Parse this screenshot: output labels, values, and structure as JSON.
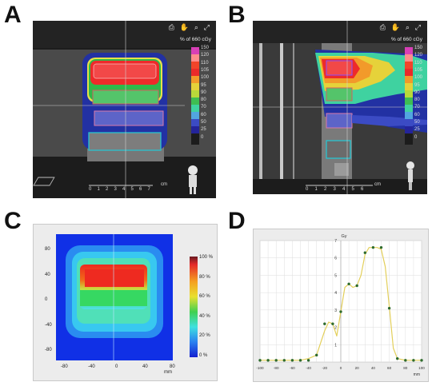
{
  "panels": {
    "a": {
      "letter": "A",
      "pct_label": "% of 660 cGy",
      "colorbar_labels": [
        "150",
        "120",
        "110",
        "105",
        "100",
        "95",
        "90",
        "80",
        "70",
        "60",
        "50",
        "25",
        "0"
      ],
      "ruler_unit": "cm",
      "ruler_ticks": [
        "0",
        "1",
        "2",
        "3",
        "4",
        "5",
        "6",
        "7"
      ]
    },
    "b": {
      "letter": "B",
      "pct_label": "% of 660 cGy",
      "colorbar_labels": [
        "150",
        "120",
        "110",
        "105",
        "100",
        "95",
        "90",
        "80",
        "70",
        "60",
        "50",
        "25",
        "0"
      ],
      "ruler_unit": "cm",
      "ruler_ticks": [
        "0",
        "1",
        "2",
        "3",
        "4",
        "5",
        "6"
      ]
    },
    "c": {
      "letter": "C",
      "colorbar_labels": [
        "100 %",
        "80 %",
        "60 %",
        "40 %",
        "20 %",
        "0 %"
      ],
      "y_ticks": [
        "80",
        "40",
        "0",
        "-40",
        "-80"
      ],
      "x_ticks": [
        "-80",
        "-40",
        "0",
        "40",
        "80"
      ],
      "x_unit": "mm"
    },
    "d": {
      "letter": "D"
    }
  },
  "icons": {
    "toolbar": [
      "print-icon",
      "hand-icon",
      "zoom-icon",
      "expand-icon"
    ],
    "glyphs": "⎙ ✋ ⌕ ⤢"
  },
  "chart_data": {
    "type": "line",
    "title": "",
    "ylabel": "Gy",
    "xlabel": "mm",
    "xlim": [
      -100,
      100
    ],
    "ylim": [
      0,
      7
    ],
    "x_ticks": [
      -100,
      -90,
      -80,
      -70,
      -60,
      -50,
      -40,
      -30,
      -20,
      -10,
      0,
      10,
      20,
      30,
      40,
      50,
      60,
      70,
      80,
      90,
      100
    ],
    "y_ticks": [
      1,
      2,
      3,
      4,
      5,
      6,
      7
    ],
    "x": [
      -100,
      -90,
      -80,
      -70,
      -60,
      -50,
      -40,
      -30,
      -20,
      -15,
      -10,
      -5,
      0,
      5,
      10,
      15,
      20,
      25,
      30,
      35,
      40,
      45,
      50,
      55,
      60,
      65,
      70,
      75,
      80,
      90,
      100
    ],
    "values": [
      0.1,
      0.1,
      0.1,
      0.1,
      0.1,
      0.1,
      0.2,
      0.4,
      1.8,
      2.3,
      2.2,
      1.5,
      2.9,
      4.3,
      4.5,
      4.3,
      4.4,
      5.0,
      6.2,
      6.6,
      6.6,
      6.6,
      6.5,
      5.5,
      3.2,
      0.8,
      0.2,
      0.15,
      0.1,
      0.1,
      0.1
    ],
    "markers": [
      [
        -100,
        0.1
      ],
      [
        -90,
        0.1
      ],
      [
        -80,
        0.1
      ],
      [
        -70,
        0.1
      ],
      [
        -60,
        0.1
      ],
      [
        -50,
        0.1
      ],
      [
        -40,
        0.1
      ],
      [
        -30,
        0.4
      ],
      [
        -20,
        2.2
      ],
      [
        -10,
        2.2
      ],
      [
        0,
        2.9
      ],
      [
        10,
        4.5
      ],
      [
        20,
        4.4
      ],
      [
        30,
        6.3
      ],
      [
        40,
        6.6
      ],
      [
        50,
        6.6
      ],
      [
        60,
        3.1
      ],
      [
        70,
        0.2
      ],
      [
        80,
        0.1
      ],
      [
        90,
        0.1
      ],
      [
        100,
        0.1
      ]
    ],
    "grid": true,
    "legend": "none"
  },
  "colors": {
    "line": "#e3cf5a",
    "marker": "#2d6a2d"
  }
}
